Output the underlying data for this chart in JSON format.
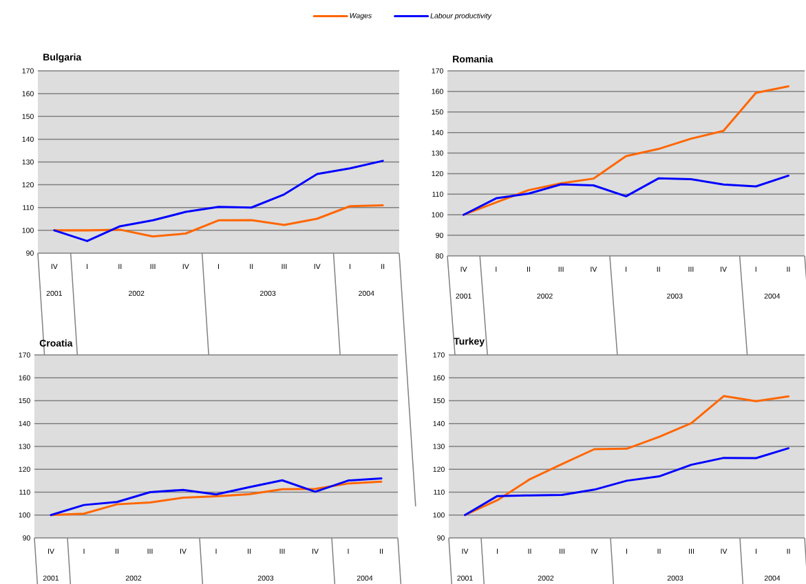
{
  "chart_data": [
    {
      "type": "line",
      "title": "Bulgaria",
      "categories": [
        "IV",
        "I",
        "II",
        "III",
        "IV",
        "I",
        "II",
        "III",
        "IV",
        "I",
        "II"
      ],
      "annotations": [
        "2001",
        "2002",
        "2003",
        "2004"
      ],
      "legend": "top",
      "grid": "y",
      "ylim": [
        90,
        170
      ],
      "yticks": [
        90,
        100,
        110,
        120,
        130,
        140,
        150,
        160,
        170
      ],
      "series": [
        {
          "name": "Wages",
          "color": "#ff6600",
          "values": [
            100,
            100,
            100.3,
            97.3,
            98.6,
            104.4,
            104.5,
            102.4,
            105.1,
            110.6,
            111
          ]
        },
        {
          "name": "Labour productivity",
          "color": "#0000ff",
          "values": [
            100,
            95.3,
            101.8,
            104.4,
            108.1,
            110.3,
            110,
            115.8,
            124.7,
            127.2,
            130.5
          ]
        }
      ]
    },
    {
      "type": "line",
      "title": "Romania",
      "categories": [
        "IV",
        "I",
        "II",
        "III",
        "IV",
        "I",
        "II",
        "III",
        "IV",
        "I",
        "II"
      ],
      "annotations": [
        "2001",
        "2002",
        "2003",
        "2004"
      ],
      "grid": "y",
      "ylim": [
        80,
        170
      ],
      "yticks": [
        80,
        90,
        100,
        110,
        120,
        130,
        140,
        150,
        160,
        170
      ],
      "series": [
        {
          "color": "#ff6600",
          "values": [
            100,
            106,
            112,
            115.3,
            117.6,
            128.5,
            132,
            137,
            140.8,
            159.3,
            162.5
          ]
        },
        {
          "color": "#0000ff",
          "values": [
            100,
            108,
            110.3,
            114.8,
            114.3,
            109,
            117.7,
            117.3,
            114.7,
            113.8,
            119
          ]
        }
      ]
    },
    {
      "type": "line",
      "title": "Croatia",
      "categories": [
        "IV",
        "I",
        "II",
        "III",
        "IV",
        "I",
        "II",
        "III",
        "IV",
        "I",
        "II"
      ],
      "annotations": [
        "2001",
        "2002",
        "2003",
        "2004"
      ],
      "grid": "y",
      "ylim": [
        90,
        170
      ],
      "yticks": [
        90,
        100,
        110,
        120,
        130,
        140,
        150,
        160,
        170
      ],
      "series": [
        {
          "color": "#ff6600",
          "values": [
            100,
            100.6,
            104.7,
            105.5,
            107.6,
            108.2,
            109.1,
            111.3,
            111.4,
            113.8,
            114.6
          ]
        },
        {
          "color": "#0000ff",
          "values": [
            100,
            104.4,
            105.7,
            110,
            111,
            109,
            112.2,
            115.2,
            110.2,
            115.1,
            116
          ]
        }
      ]
    },
    {
      "type": "line",
      "title": "Turkey",
      "categories": [
        "IV",
        "I",
        "II",
        "III",
        "IV",
        "I",
        "II",
        "III",
        "IV",
        "I",
        "II"
      ],
      "annotations": [
        "2001",
        "2002",
        "2003",
        "2004"
      ],
      "grid": "y",
      "ylim": [
        90,
        170
      ],
      "yticks": [
        90,
        100,
        110,
        120,
        130,
        140,
        150,
        160,
        170
      ],
      "series": [
        {
          "color": "#ff6600",
          "values": [
            100,
            106.5,
            115.6,
            122.3,
            128.8,
            129,
            134.2,
            140.2,
            152,
            149.8,
            151.9
          ]
        },
        {
          "color": "#0000ff",
          "values": [
            100,
            108.3,
            108.6,
            108.8,
            111.1,
            115,
            116.9,
            122,
            125,
            124.9,
            129.2
          ]
        }
      ]
    }
  ]
}
